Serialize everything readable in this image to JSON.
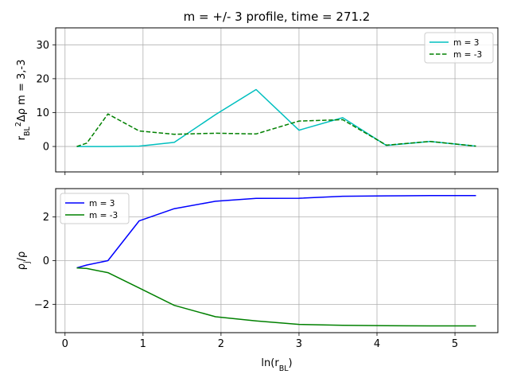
{
  "chart_data": [
    {
      "type": "line",
      "title": "m = +/- 3 profile, time = 271.2",
      "xlabel": "",
      "ylabel": "r_BL²Δρ   m = 3,-3",
      "xlim": [
        -0.12,
        5.55
      ],
      "ylim": [
        -7.5,
        35
      ],
      "xticks": [
        0,
        1,
        2,
        3,
        4,
        5
      ],
      "xtick_labels_visible": false,
      "yticks": [
        0,
        10,
        20,
        30
      ],
      "grid": true,
      "legend_placement": "top-right",
      "series": [
        {
          "name": "m = 3",
          "color": "#00bfbf",
          "dash": "solid",
          "x": [
            0.15,
            0.28,
            0.55,
            0.95,
            1.4,
            1.93,
            2.45,
            3.0,
            3.56,
            4.12,
            4.68,
            5.27
          ],
          "y": [
            0.0,
            0.0,
            0.0,
            0.1,
            1.2,
            9.4,
            16.8,
            4.8,
            8.5,
            0.3,
            1.5,
            0.1
          ]
        },
        {
          "name": "m = -3",
          "color": "#008000",
          "dash": "dashed",
          "x": [
            0.15,
            0.28,
            0.55,
            0.95,
            1.4,
            1.93,
            2.45,
            3.0,
            3.56,
            4.12,
            4.68,
            5.27
          ],
          "y": [
            0.0,
            1.0,
            9.6,
            4.6,
            3.6,
            3.9,
            3.7,
            7.5,
            7.9,
            0.4,
            1.5,
            0.1
          ]
        }
      ]
    },
    {
      "type": "line",
      "title": "",
      "xlabel": "ln(r_BL)",
      "ylabel": "ρ_j/ρ",
      "xlim": [
        -0.12,
        5.55
      ],
      "ylim": [
        -3.3,
        3.3
      ],
      "xticks": [
        0,
        1,
        2,
        3,
        4,
        5
      ],
      "yticks": [
        -2,
        0,
        2
      ],
      "grid": true,
      "legend_placement": "top-left",
      "series": [
        {
          "name": "m = 3",
          "color": "#0000ff",
          "dash": "solid",
          "x": [
            0.15,
            0.28,
            0.55,
            0.95,
            1.4,
            1.93,
            2.45,
            3.0,
            3.56,
            4.12,
            4.68,
            5.27
          ],
          "y": [
            -0.33,
            -0.2,
            0.0,
            1.82,
            2.38,
            2.72,
            2.85,
            2.86,
            2.95,
            2.97,
            2.98,
            2.98
          ]
        },
        {
          "name": "m = -3",
          "color": "#008000",
          "dash": "solid",
          "x": [
            0.15,
            0.28,
            0.55,
            0.95,
            1.4,
            1.93,
            2.45,
            3.0,
            3.56,
            4.12,
            4.68,
            5.27
          ],
          "y": [
            -0.33,
            -0.36,
            -0.55,
            -1.25,
            -2.05,
            -2.57,
            -2.76,
            -2.92,
            -2.96,
            -2.98,
            -2.99,
            -2.99
          ]
        }
      ]
    }
  ]
}
